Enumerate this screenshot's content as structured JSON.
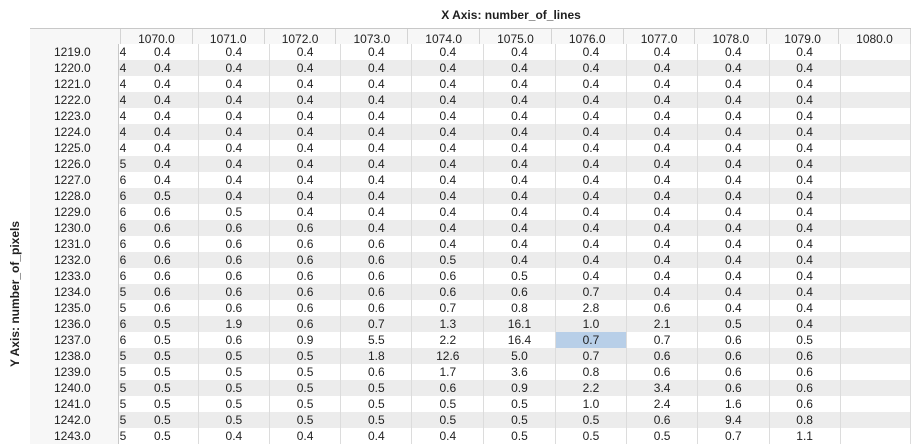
{
  "x_axis_title": "X Axis: number_of_lines",
  "y_axis_title": "Y Axis: number_of_pixels",
  "columns": [
    "1070.0",
    "1071.0",
    "1072.0",
    "1073.0",
    "1074.0",
    "1075.0",
    "1076.0",
    "1077.0",
    "1078.0",
    "1079.0",
    "1080.0"
  ],
  "selected_cell": {
    "row": 18,
    "col": 6
  },
  "rows": [
    {
      "label": "1219.0",
      "first": "4",
      "values": [
        "0.4",
        "0.4",
        "0.4",
        "0.4",
        "0.4",
        "0.4",
        "0.4",
        "0.4",
        "0.4",
        "0.4",
        ""
      ]
    },
    {
      "label": "1220.0",
      "first": "4",
      "values": [
        "0.4",
        "0.4",
        "0.4",
        "0.4",
        "0.4",
        "0.4",
        "0.4",
        "0.4",
        "0.4",
        "0.4",
        ""
      ]
    },
    {
      "label": "1221.0",
      "first": "4",
      "values": [
        "0.4",
        "0.4",
        "0.4",
        "0.4",
        "0.4",
        "0.4",
        "0.4",
        "0.4",
        "0.4",
        "0.4",
        ""
      ]
    },
    {
      "label": "1222.0",
      "first": "4",
      "values": [
        "0.4",
        "0.4",
        "0.4",
        "0.4",
        "0.4",
        "0.4",
        "0.4",
        "0.4",
        "0.4",
        "0.4",
        ""
      ]
    },
    {
      "label": "1223.0",
      "first": "4",
      "values": [
        "0.4",
        "0.4",
        "0.4",
        "0.4",
        "0.4",
        "0.4",
        "0.4",
        "0.4",
        "0.4",
        "0.4",
        ""
      ]
    },
    {
      "label": "1224.0",
      "first": "4",
      "values": [
        "0.4",
        "0.4",
        "0.4",
        "0.4",
        "0.4",
        "0.4",
        "0.4",
        "0.4",
        "0.4",
        "0.4",
        ""
      ]
    },
    {
      "label": "1225.0",
      "first": "4",
      "values": [
        "0.4",
        "0.4",
        "0.4",
        "0.4",
        "0.4",
        "0.4",
        "0.4",
        "0.4",
        "0.4",
        "0.4",
        ""
      ]
    },
    {
      "label": "1226.0",
      "first": "5",
      "values": [
        "0.4",
        "0.4",
        "0.4",
        "0.4",
        "0.4",
        "0.4",
        "0.4",
        "0.4",
        "0.4",
        "0.4",
        ""
      ]
    },
    {
      "label": "1227.0",
      "first": "6",
      "values": [
        "0.4",
        "0.4",
        "0.4",
        "0.4",
        "0.4",
        "0.4",
        "0.4",
        "0.4",
        "0.4",
        "0.4",
        ""
      ]
    },
    {
      "label": "1228.0",
      "first": "6",
      "values": [
        "0.5",
        "0.4",
        "0.4",
        "0.4",
        "0.4",
        "0.4",
        "0.4",
        "0.4",
        "0.4",
        "0.4",
        ""
      ]
    },
    {
      "label": "1229.0",
      "first": "6",
      "values": [
        "0.6",
        "0.5",
        "0.4",
        "0.4",
        "0.4",
        "0.4",
        "0.4",
        "0.4",
        "0.4",
        "0.4",
        ""
      ]
    },
    {
      "label": "1230.0",
      "first": "6",
      "values": [
        "0.6",
        "0.6",
        "0.6",
        "0.4",
        "0.4",
        "0.4",
        "0.4",
        "0.4",
        "0.4",
        "0.4",
        ""
      ]
    },
    {
      "label": "1231.0",
      "first": "6",
      "values": [
        "0.6",
        "0.6",
        "0.6",
        "0.6",
        "0.4",
        "0.4",
        "0.4",
        "0.4",
        "0.4",
        "0.4",
        ""
      ]
    },
    {
      "label": "1232.0",
      "first": "6",
      "values": [
        "0.6",
        "0.6",
        "0.6",
        "0.6",
        "0.5",
        "0.4",
        "0.4",
        "0.4",
        "0.4",
        "0.4",
        ""
      ]
    },
    {
      "label": "1233.0",
      "first": "6",
      "values": [
        "0.6",
        "0.6",
        "0.6",
        "0.6",
        "0.6",
        "0.5",
        "0.4",
        "0.4",
        "0.4",
        "0.4",
        ""
      ]
    },
    {
      "label": "1234.0",
      "first": "5",
      "values": [
        "0.6",
        "0.6",
        "0.6",
        "0.6",
        "0.6",
        "0.6",
        "0.7",
        "0.4",
        "0.4",
        "0.4",
        ""
      ]
    },
    {
      "label": "1235.0",
      "first": "5",
      "values": [
        "0.6",
        "0.6",
        "0.6",
        "0.6",
        "0.7",
        "0.8",
        "2.8",
        "0.6",
        "0.4",
        "0.4",
        ""
      ]
    },
    {
      "label": "1236.0",
      "first": "6",
      "values": [
        "0.5",
        "1.9",
        "0.6",
        "0.7",
        "1.3",
        "16.1",
        "1.0",
        "2.1",
        "0.5",
        "0.4",
        ""
      ]
    },
    {
      "label": "1237.0",
      "first": "6",
      "values": [
        "0.5",
        "0.6",
        "0.9",
        "5.5",
        "2.2",
        "16.4",
        "0.7",
        "0.7",
        "0.6",
        "0.5",
        ""
      ]
    },
    {
      "label": "1238.0",
      "first": "5",
      "values": [
        "0.5",
        "0.5",
        "0.5",
        "1.8",
        "12.6",
        "5.0",
        "0.7",
        "0.6",
        "0.6",
        "0.6",
        ""
      ]
    },
    {
      "label": "1239.0",
      "first": "5",
      "values": [
        "0.5",
        "0.5",
        "0.5",
        "0.6",
        "1.7",
        "3.6",
        "0.8",
        "0.6",
        "0.6",
        "0.6",
        ""
      ]
    },
    {
      "label": "1240.0",
      "first": "5",
      "values": [
        "0.5",
        "0.5",
        "0.5",
        "0.5",
        "0.6",
        "0.9",
        "2.2",
        "3.4",
        "0.6",
        "0.6",
        ""
      ]
    },
    {
      "label": "1241.0",
      "first": "5",
      "values": [
        "0.5",
        "0.5",
        "0.5",
        "0.5",
        "0.5",
        "0.5",
        "1.0",
        "2.4",
        "1.6",
        "0.6",
        ""
      ]
    },
    {
      "label": "1242.0",
      "first": "5",
      "values": [
        "0.5",
        "0.5",
        "0.5",
        "0.5",
        "0.5",
        "0.5",
        "0.5",
        "0.6",
        "9.4",
        "0.8",
        ""
      ]
    },
    {
      "label": "1243.0",
      "first": "5",
      "values": [
        "0.5",
        "0.4",
        "0.4",
        "0.4",
        "0.4",
        "0.5",
        "0.5",
        "0.5",
        "0.7",
        "1.1",
        ""
      ]
    }
  ]
}
